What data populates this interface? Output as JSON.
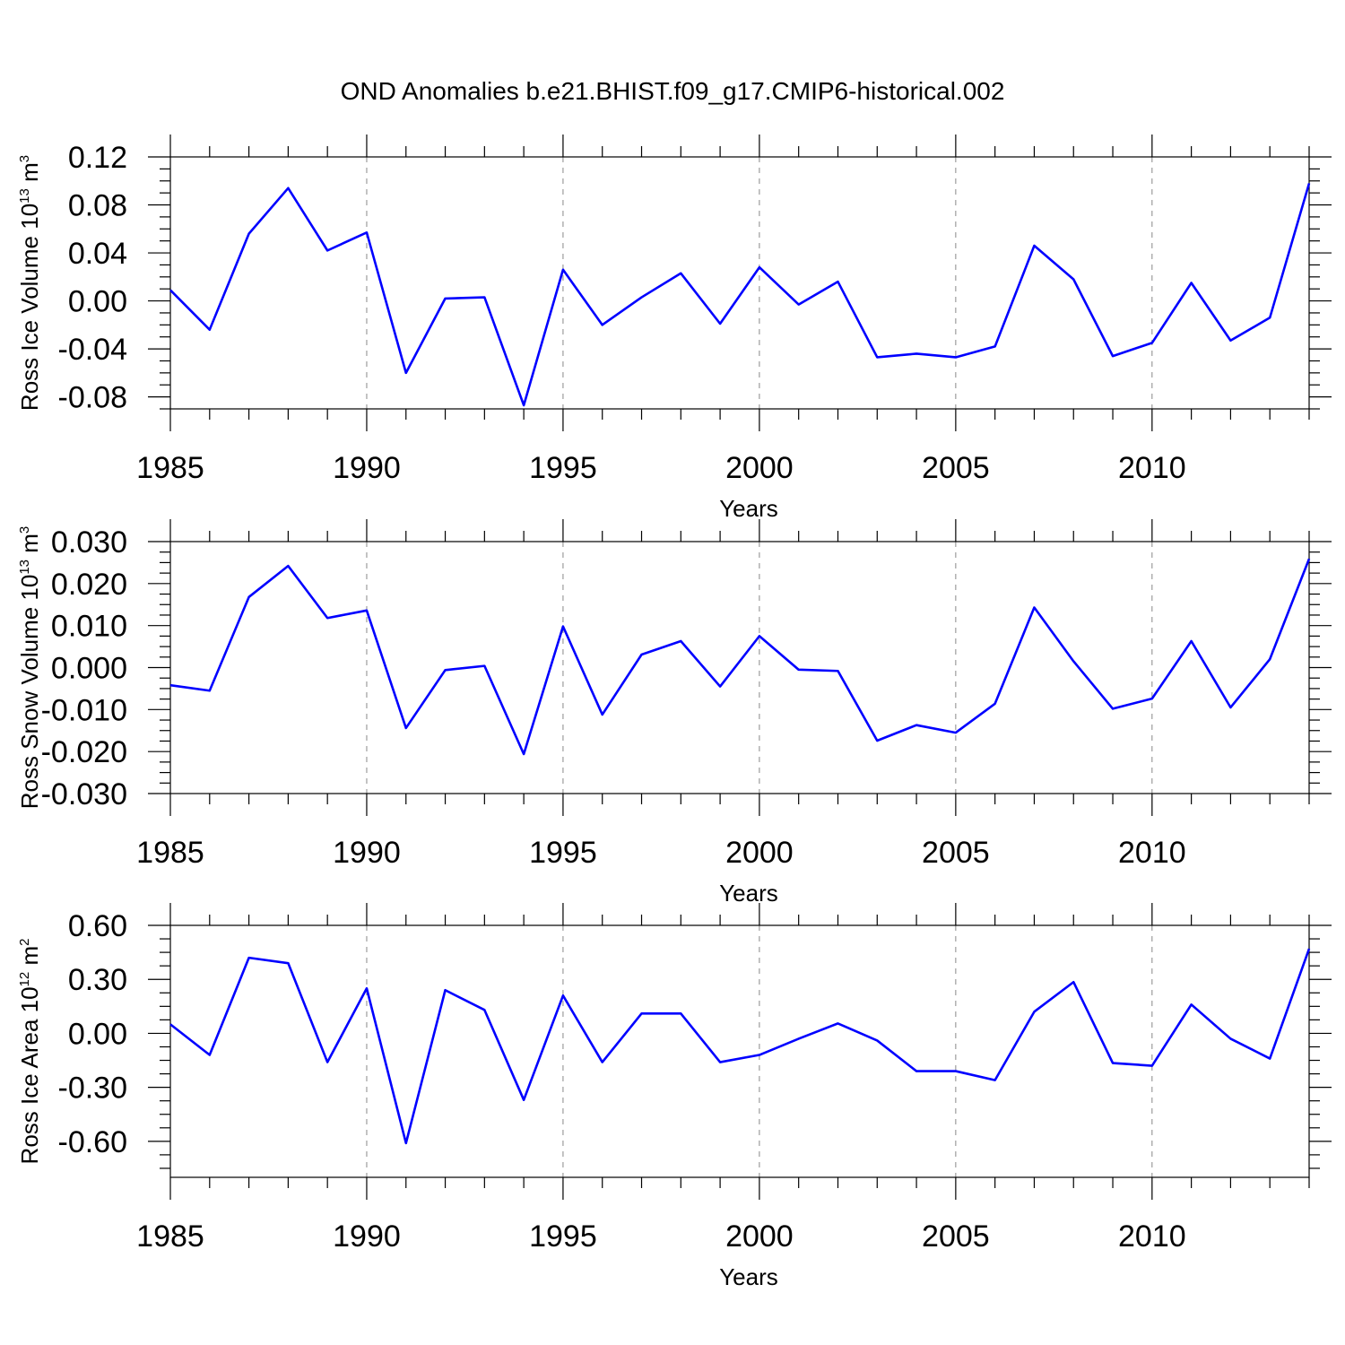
{
  "title": "OND Anomalies b.e21.BHIST.f09_g17.CMIP6-historical.002",
  "colors": {
    "series": "#0000ff",
    "axis": "#000000",
    "grid": "#888888"
  },
  "chart_data": [
    {
      "type": "line",
      "ylabel": {
        "base": "Ross Ice Volume 10",
        "exp": "13",
        "unit": " m",
        "unit_exp": "3"
      },
      "xlabel": "Years",
      "xlim": [
        1985,
        2014
      ],
      "ylim": [
        -0.09,
        0.12
      ],
      "yticks": [
        {
          "value": 0.12,
          "label": "0.12"
        },
        {
          "value": 0.08,
          "label": "0.08"
        },
        {
          "value": 0.04,
          "label": "0.04"
        },
        {
          "value": 0.0,
          "label": "0.00"
        },
        {
          "value": -0.04,
          "label": "-0.04"
        },
        {
          "value": -0.08,
          "label": "-0.08"
        }
      ],
      "xticks": [
        {
          "value": 1985,
          "label": "1985"
        },
        {
          "value": 1990,
          "label": "1990"
        },
        {
          "value": 1995,
          "label": "1995"
        },
        {
          "value": 2000,
          "label": "2000"
        },
        {
          "value": 2005,
          "label": "2005"
        },
        {
          "value": 2010,
          "label": "2010"
        }
      ],
      "x": [
        1985,
        1986,
        1987,
        1988,
        1989,
        1990,
        1991,
        1992,
        1993,
        1994,
        1995,
        1996,
        1997,
        1998,
        1999,
        2000,
        2001,
        2002,
        2003,
        2004,
        2005,
        2006,
        2007,
        2008,
        2009,
        2010,
        2011,
        2012,
        2013,
        2014
      ],
      "values": [
        0.009,
        -0.024,
        0.056,
        0.094,
        0.042,
        0.057,
        -0.06,
        0.002,
        0.003,
        -0.087,
        0.026,
        -0.02,
        0.003,
        0.023,
        -0.019,
        0.028,
        -0.003,
        0.016,
        -0.047,
        -0.044,
        -0.047,
        -0.038,
        0.046,
        0.018,
        -0.046,
        -0.035,
        0.015,
        -0.033,
        -0.014,
        0.098
      ]
    },
    {
      "type": "line",
      "ylabel": {
        "base": "Ross Snow Volume 10",
        "exp": "13",
        "unit": " m",
        "unit_exp": "3"
      },
      "xlabel": "Years",
      "xlim": [
        1985,
        2014
      ],
      "ylim": [
        -0.03,
        0.03
      ],
      "yticks": [
        {
          "value": 0.03,
          "label": "0.030"
        },
        {
          "value": 0.02,
          "label": "0.020"
        },
        {
          "value": 0.01,
          "label": "0.010"
        },
        {
          "value": 0.0,
          "label": "0.000"
        },
        {
          "value": -0.01,
          "label": "-0.010"
        },
        {
          "value": -0.02,
          "label": "-0.020"
        },
        {
          "value": -0.03,
          "label": "-0.030"
        }
      ],
      "xticks": [
        {
          "value": 1985,
          "label": "1985"
        },
        {
          "value": 1990,
          "label": "1990"
        },
        {
          "value": 1995,
          "label": "1995"
        },
        {
          "value": 2000,
          "label": "2000"
        },
        {
          "value": 2005,
          "label": "2005"
        },
        {
          "value": 2010,
          "label": "2010"
        }
      ],
      "x": [
        1985,
        1986,
        1987,
        1988,
        1989,
        1990,
        1991,
        1992,
        1993,
        1994,
        1995,
        1996,
        1997,
        1998,
        1999,
        2000,
        2001,
        2002,
        2003,
        2004,
        2005,
        2006,
        2007,
        2008,
        2009,
        2010,
        2011,
        2012,
        2013,
        2014
      ],
      "values": [
        -0.0042,
        -0.0055,
        0.0168,
        0.0242,
        0.0118,
        0.0136,
        -0.0144,
        -0.0006,
        0.0004,
        -0.0206,
        0.0098,
        -0.0112,
        0.0031,
        0.0063,
        -0.0045,
        0.0075,
        -0.0005,
        -0.0008,
        -0.0174,
        -0.0137,
        -0.0155,
        -0.0086,
        0.0143,
        0.0015,
        -0.0098,
        -0.0074,
        0.0063,
        -0.0095,
        0.002,
        0.0259
      ]
    },
    {
      "type": "line",
      "ylabel": {
        "base": "Ross Ice Area 10",
        "exp": "12",
        "unit": " m",
        "unit_exp": "2"
      },
      "xlabel": "Years",
      "xlim": [
        1985,
        2014
      ],
      "ylim": [
        -0.8,
        0.6
      ],
      "yticks": [
        {
          "value": 0.6,
          "label": "0.60"
        },
        {
          "value": 0.3,
          "label": "0.30"
        },
        {
          "value": 0.0,
          "label": "0.00"
        },
        {
          "value": -0.3,
          "label": "-0.30"
        },
        {
          "value": -0.6,
          "label": "-0.60"
        }
      ],
      "xticks": [
        {
          "value": 1985,
          "label": "1985"
        },
        {
          "value": 1990,
          "label": "1990"
        },
        {
          "value": 1995,
          "label": "1995"
        },
        {
          "value": 2000,
          "label": "2000"
        },
        {
          "value": 2005,
          "label": "2005"
        },
        {
          "value": 2010,
          "label": "2010"
        }
      ],
      "x": [
        1985,
        1986,
        1987,
        1988,
        1989,
        1990,
        1991,
        1992,
        1993,
        1994,
        1995,
        1996,
        1997,
        1998,
        1999,
        2000,
        2001,
        2002,
        2003,
        2004,
        2005,
        2006,
        2007,
        2008,
        2009,
        2010,
        2011,
        2012,
        2013,
        2014
      ],
      "values": [
        0.05,
        -0.12,
        0.42,
        0.39,
        -0.16,
        0.25,
        -0.61,
        0.24,
        0.13,
        -0.37,
        0.21,
        -0.16,
        0.11,
        0.11,
        -0.16,
        -0.12,
        -0.03,
        0.055,
        -0.04,
        -0.21,
        -0.21,
        -0.26,
        0.12,
        0.285,
        -0.165,
        -0.18,
        0.16,
        -0.03,
        -0.14,
        0.47
      ]
    }
  ]
}
